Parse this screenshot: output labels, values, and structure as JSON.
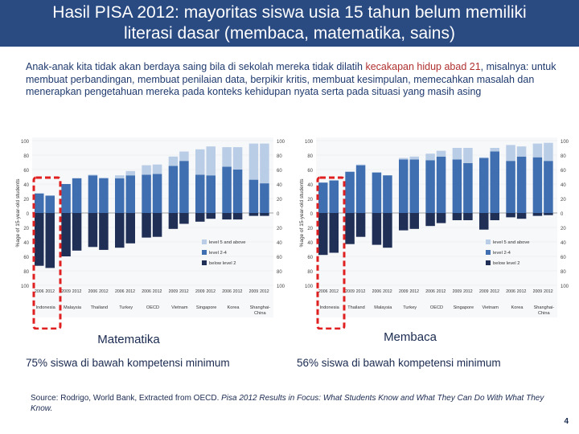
{
  "slide": {
    "title_line1": "Hasil PISA 2012: mayoritas siswa usia 15 tahun belum memiliki",
    "title_line2": "literasi dasar (membaca, matematika, sains)",
    "intro_a": "Anak-anak kita tidak akan berdaya saing bila di sekolah mereka tidak dilatih ",
    "intro_highlight": "kecakapan hidup abad 21",
    "intro_b": ", misalnya: untuk membuat perbandingan, membuat penilaian data, berpikir kritis, membuat kesimpulan, memecahkan masalah dan menerapkan pengetahuan mereka pada konteks kehidupan nyata serta pada situasi yang masih asing",
    "source_a": "Source: Rodrigo, World Bank, Extracted from OECD. ",
    "source_italic": "Pisa 2012 Results in Focus: What Students Know and What They Can Do With What They Know.",
    "page_number": "4",
    "colors": {
      "title_bg": "#2a4a82",
      "level5": "#b9cde6",
      "level24": "#3f6fb0",
      "below2": "#1f2f55",
      "highlight_box": "#e02020"
    }
  },
  "charts": {
    "math": {
      "title": "Matematika",
      "caption": "75% siswa di bawah kompetensi minimum",
      "ylabel": "%age of 15-year-old students"
    },
    "reading": {
      "title": "Membaca",
      "caption": "56% siswa di bawah kompetensi minimum",
      "ylabel": "%age of 15-year-old students"
    }
  },
  "chart_data": [
    {
      "type": "bar",
      "title": "Matematika",
      "ylabel": "%age of 15-year-old students",
      "ylim": [
        -100,
        100
      ],
      "y_ticks": [
        "100",
        "80",
        "60",
        "40",
        "20",
        "0",
        "20",
        "40",
        "60",
        "80",
        "100"
      ],
      "legend": [
        "level 5 and above",
        "level 2-4",
        "below level 2"
      ],
      "legend_position": "bottom-right",
      "years": [
        "2006",
        "2012",
        "2009",
        "2012",
        "2006",
        "2012",
        "2006",
        "2012",
        "2006",
        "2012",
        "2009",
        "2012",
        "2009",
        "2012",
        "2006",
        "2012",
        "2009",
        "2012"
      ],
      "country_groups": [
        "Indonesia",
        "Malaysia",
        "Thailand",
        "Turkey",
        "OECD",
        "Vietnam",
        "Singapore",
        "Korea",
        "Shanghai-China"
      ],
      "series": [
        {
          "name": "level 5 and above",
          "values": [
            0,
            0,
            0,
            0,
            1,
            1,
            4,
            6,
            13,
            13,
            13,
            13,
            35,
            40,
            27,
            31,
            50,
            55
          ]
        },
        {
          "name": "level 2-4",
          "values": [
            27,
            24,
            40,
            48,
            52,
            48,
            48,
            52,
            53,
            54,
            65,
            72,
            53,
            52,
            64,
            60,
            46,
            41
          ]
        },
        {
          "name": "below level 2",
          "values": [
            -73,
            -76,
            -60,
            -52,
            -47,
            -51,
            -48,
            -42,
            -34,
            -33,
            -22,
            -15,
            -12,
            -8,
            -9,
            -9,
            -4,
            -4
          ]
        }
      ]
    },
    {
      "type": "bar",
      "title": "Membaca",
      "ylabel": "%age of 15-year-old students",
      "ylim": [
        -100,
        100
      ],
      "y_ticks": [
        "100",
        "80",
        "60",
        "40",
        "20",
        "0",
        "20",
        "40",
        "60",
        "80",
        "100"
      ],
      "legend": [
        "level 5 and above",
        "level 2-4",
        "below level 2"
      ],
      "legend_position": "bottom-right",
      "years": [
        "2006",
        "2012",
        "2009",
        "2012",
        "2006",
        "2012",
        "2009",
        "2012",
        "2006",
        "2012",
        "2009",
        "2012",
        "2009",
        "2012",
        "2006",
        "2012",
        "2009",
        "2012"
      ],
      "country_groups": [
        "Indonesia",
        "Thailand",
        "Malaysia",
        "Turkey",
        "OECD",
        "Singapore",
        "Vietnam",
        "Korea",
        "Shanghai-China"
      ],
      "series": [
        {
          "name": "level 5 and above",
          "values": [
            0,
            0,
            0,
            1,
            0,
            0,
            2,
            4,
            9,
            8,
            16,
            21,
            1,
            5,
            22,
            14,
            19,
            25
          ]
        },
        {
          "name": "level 2-4",
          "values": [
            42,
            45,
            57,
            66,
            56,
            52,
            74,
            74,
            73,
            78,
            74,
            69,
            76,
            85,
            72,
            78,
            77,
            72
          ]
        },
        {
          "name": "below level 2",
          "values": [
            -58,
            -55,
            -43,
            -33,
            -44,
            -48,
            -24,
            -22,
            -18,
            -14,
            -10,
            -10,
            -23,
            -10,
            -6,
            -8,
            -4,
            -3
          ]
        }
      ]
    }
  ]
}
